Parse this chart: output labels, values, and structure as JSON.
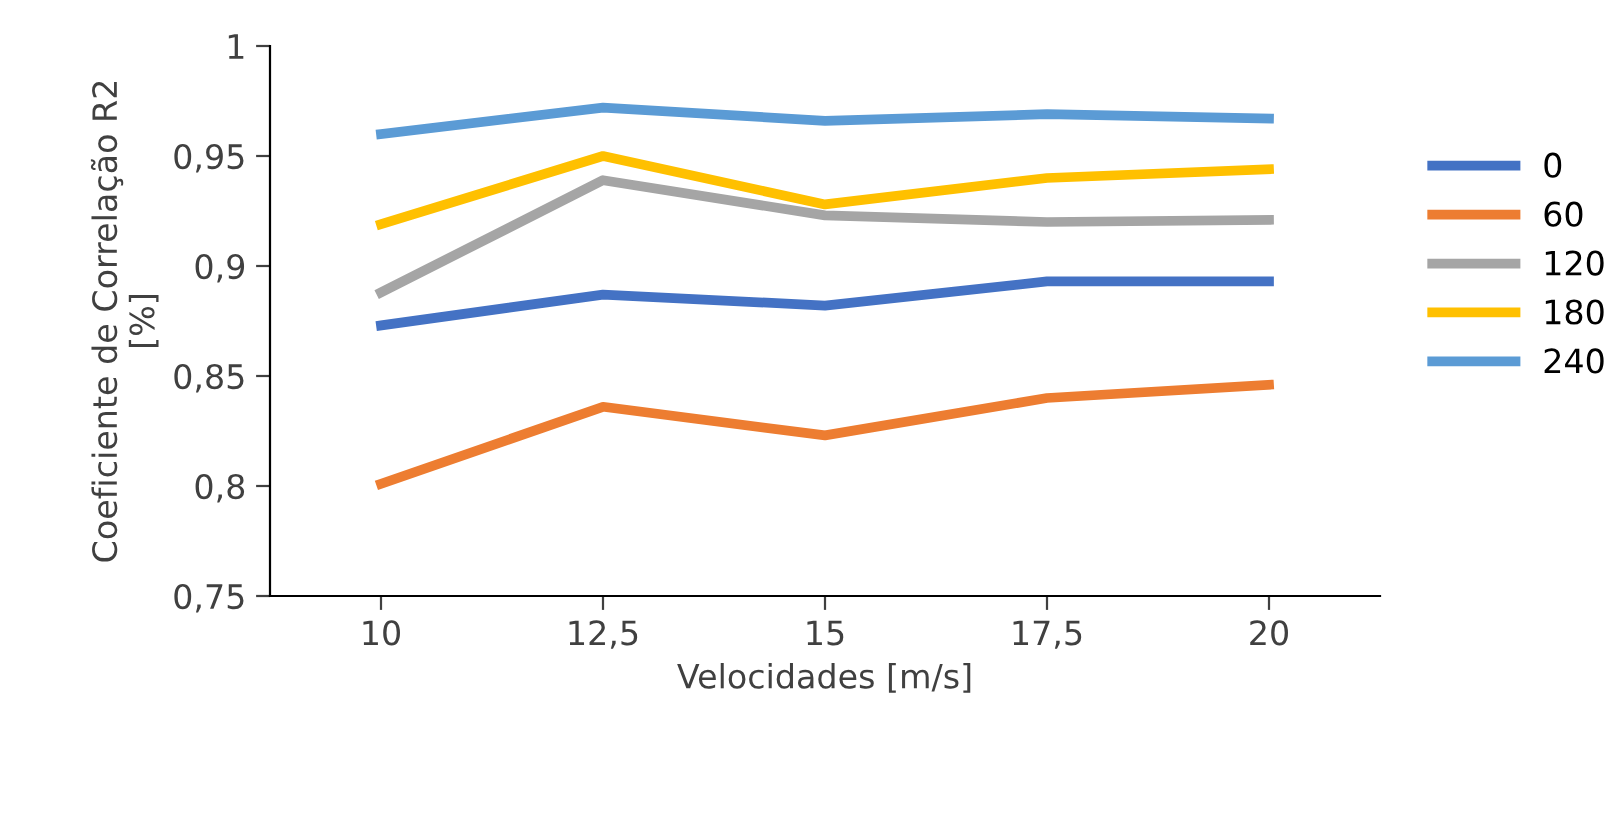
{
  "chart_data": {
    "type": "line",
    "xlabel": "Velocidades [m/s]",
    "ylabel": "Coeficiente de Correlação R2\n[%]",
    "categories": [
      "10",
      "12,5",
      "15",
      "17,5",
      "20"
    ],
    "series": [
      {
        "name": "0",
        "color": "#4472c4",
        "values": [
          0.873,
          0.887,
          0.882,
          0.893,
          0.893
        ]
      },
      {
        "name": "60",
        "color": "#ed7d31",
        "values": [
          0.801,
          0.836,
          0.823,
          0.84,
          0.846
        ]
      },
      {
        "name": "120",
        "color": "#a5a5a5",
        "values": [
          0.888,
          0.939,
          0.923,
          0.92,
          0.921
        ]
      },
      {
        "name": "180",
        "color": "#ffc000",
        "values": [
          0.919,
          0.95,
          0.928,
          0.94,
          0.944
        ]
      },
      {
        "name": "240",
        "color": "#5b9bd5",
        "values": [
          0.96,
          0.972,
          0.966,
          0.969,
          0.967
        ]
      }
    ],
    "ylim": [
      0.75,
      1
    ],
    "yticks": [
      {
        "value": 0.75,
        "label": "0,75"
      },
      {
        "value": 0.8,
        "label": "0,8"
      },
      {
        "value": 0.85,
        "label": "0,85"
      },
      {
        "value": 0.9,
        "label": "0,9"
      },
      {
        "value": 0.95,
        "label": "0,95"
      },
      {
        "value": 1,
        "label": "1"
      }
    ],
    "grid": false,
    "legend": "right",
    "marker": "none",
    "line_style": "solid"
  }
}
